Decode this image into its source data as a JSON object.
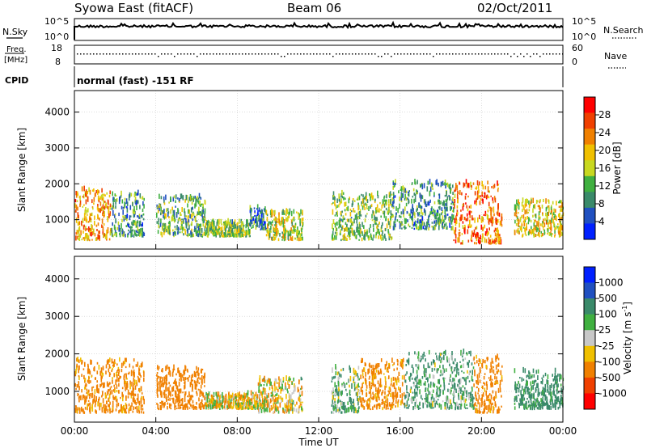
{
  "header": {
    "title": "Syowa East (fitACF)",
    "beam": "Beam 06",
    "date": "02/Oct/2011"
  },
  "strip_panels": {
    "nsky": {
      "label": "N.Sky",
      "right_label": "N.Search",
      "tick_top": "10^5",
      "tick_bottom": "10^0",
      "right_tick_top": "10^5",
      "right_tick_bottom": "10^0"
    },
    "freq": {
      "label_line1": "Freq.",
      "label_line2": "[MHz]",
      "tick_top": "18",
      "tick_bottom": "8",
      "right_label": "Nave",
      "right_tick_top": "60",
      "right_tick_bottom": "0"
    },
    "cpid": {
      "label": "CPID",
      "text": "normal (fast) -151 RF"
    }
  },
  "colors": {
    "power_scale": [
      "#0020ff",
      "#2050c0",
      "#3a8a6a",
      "#40b040",
      "#c8d820",
      "#f0c000",
      "#f08000",
      "#f04000",
      "#ff0000"
    ],
    "velocity_scale": [
      "#ff0000",
      "#f04000",
      "#f08000",
      "#f0c000",
      "#c8c8c8",
      "#40b040",
      "#3a8a6a",
      "#2050c0",
      "#0020ff"
    ],
    "grid": "#c8c8c8"
  },
  "chart_data": [
    {
      "type": "heatmap",
      "title": "",
      "ylabel": "Slant Range [km]",
      "xlabel": "",
      "ylim": [
        180,
        4600
      ],
      "y_ticks": [
        "1000",
        "2000",
        "3000",
        "4000"
      ],
      "xlim": [
        "00:00",
        "24:00"
      ],
      "colorbar": {
        "label": "Power [dB]",
        "ticks": [
          "28",
          "24",
          "20",
          "16",
          "12",
          "8",
          "4"
        ],
        "range": [
          0,
          32
        ]
      },
      "echo_regions": [
        {
          "t_start": 0.0,
          "t_end": 1.8,
          "range_min": 400,
          "range_max": 1800,
          "value": 22
        },
        {
          "t_start": 1.8,
          "t_end": 3.4,
          "range_min": 500,
          "range_max": 1700,
          "value": 10
        },
        {
          "t_start": 4.0,
          "t_end": 6.4,
          "range_min": 500,
          "range_max": 1600,
          "value": 12
        },
        {
          "t_start": 6.4,
          "t_end": 8.6,
          "range_min": 500,
          "range_max": 900,
          "value": 14
        },
        {
          "t_start": 8.6,
          "t_end": 9.4,
          "range_min": 700,
          "range_max": 1300,
          "value": 8
        },
        {
          "t_start": 9.4,
          "t_end": 11.2,
          "range_min": 400,
          "range_max": 1200,
          "value": 16
        },
        {
          "t_start": 12.6,
          "t_end": 15.6,
          "range_min": 400,
          "range_max": 1700,
          "value": 14
        },
        {
          "t_start": 15.6,
          "t_end": 18.6,
          "range_min": 700,
          "range_max": 2000,
          "value": 10
        },
        {
          "t_start": 18.6,
          "t_end": 21.0,
          "range_min": 300,
          "range_max": 2000,
          "value": 24
        },
        {
          "t_start": 21.6,
          "t_end": 24.0,
          "range_min": 500,
          "range_max": 1500,
          "value": 18
        }
      ]
    },
    {
      "type": "heatmap",
      "title": "",
      "ylabel": "Slant Range [km]",
      "xlabel": "Time UT",
      "ylim": [
        180,
        4600
      ],
      "y_ticks": [
        "1000",
        "2000",
        "3000",
        "4000"
      ],
      "x_ticks": [
        "00:00",
        "04:00",
        "08:00",
        "12:00",
        "16:00",
        "20:00",
        "00:00"
      ],
      "colorbar": {
        "label": "Velocity  [m s-1]",
        "label_main": "Velocity  [m s",
        "label_sup": "-1",
        "label_close": "]",
        "ticks": [
          "1000",
          "500",
          "100",
          "25",
          "-25",
          "-100",
          "-500",
          "-1000"
        ],
        "range": [
          -1200,
          1200
        ]
      },
      "echo_regions": [
        {
          "t_start": 0.0,
          "t_end": 3.4,
          "range_min": 400,
          "range_max": 1800,
          "value": -200
        },
        {
          "t_start": 4.0,
          "t_end": 6.4,
          "range_min": 500,
          "range_max": 1600,
          "value": -250
        },
        {
          "t_start": 6.4,
          "t_end": 9.0,
          "range_min": 500,
          "range_max": 900,
          "value": -60
        },
        {
          "t_start": 9.0,
          "t_end": 11.2,
          "range_min": 400,
          "range_max": 1300,
          "value": -40
        },
        {
          "t_start": 12.6,
          "t_end": 14.0,
          "range_min": 400,
          "range_max": 1600,
          "value": 80
        },
        {
          "t_start": 14.0,
          "t_end": 16.2,
          "range_min": 500,
          "range_max": 1800,
          "value": -180
        },
        {
          "t_start": 16.2,
          "t_end": 19.6,
          "range_min": 500,
          "range_max": 2000,
          "value": 120
        },
        {
          "t_start": 19.6,
          "t_end": 21.0,
          "range_min": 400,
          "range_max": 1900,
          "value": -220
        },
        {
          "t_start": 21.6,
          "t_end": 24.0,
          "range_min": 500,
          "range_max": 1500,
          "value": 200
        }
      ]
    }
  ]
}
